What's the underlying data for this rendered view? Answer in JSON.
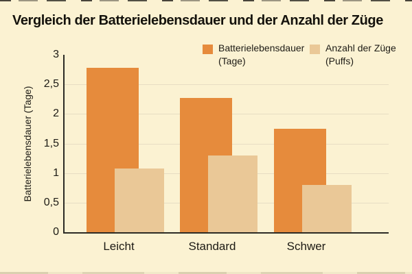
{
  "title": "Vergleich der Batterielebensdauer und der Anzahl der Züge",
  "chart_data": {
    "type": "bar",
    "style": "overlapping-grouped-bars",
    "background": "#FBF2D2",
    "categories": [
      "Leicht",
      "Standard",
      "Schwer"
    ],
    "series": [
      {
        "name": "Batterielebensdauer (Tage)",
        "color": "#E68B3C",
        "values": [
          2.78,
          2.27,
          1.75
        ]
      },
      {
        "name": "Anzahl der Züge (Puffs)",
        "color": "#EAC897",
        "values": [
          1.08,
          1.3,
          0.8
        ]
      }
    ],
    "ylabel": "Batterielebensdauer (Tage)",
    "ylim": [
      0,
      3
    ],
    "yticks": [
      {
        "label": "3",
        "value": 3
      },
      {
        "label": "2,5",
        "value": 2.5
      },
      {
        "label": "2",
        "value": 2
      },
      {
        "label": "1,5",
        "value": 1.5
      },
      {
        "label": "1",
        "value": 1
      },
      {
        "label": "0,5",
        "value": 0.5
      },
      {
        "label": "0",
        "value": 0
      }
    ],
    "grid": "horizontal",
    "legend_position": "top-right",
    "legend": [
      {
        "line1": "Batterielebensdauer",
        "line2": "(Tage)",
        "color": "#E68B3C"
      },
      {
        "line1": "Anzahl der Züge",
        "line2": "(Puffs)",
        "color": "#EAC897"
      }
    ]
  }
}
